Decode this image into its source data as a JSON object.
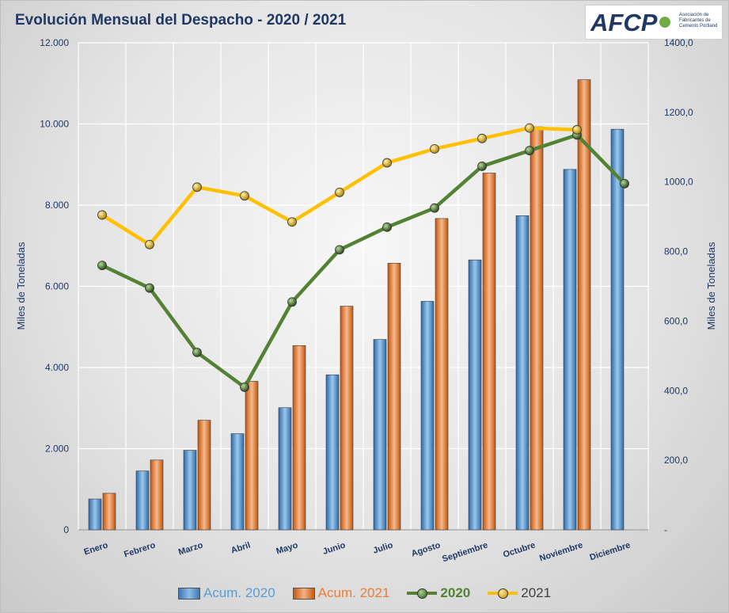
{
  "title": "Evolución Mensual del Despacho - 2020 / 2021",
  "logo": {
    "text": "AFCP",
    "subtitle": "Asociación de Fabricantes de Cemento Portland"
  },
  "colors": {
    "acum2020": "#5b9bd5",
    "acum2021": "#ed7d31",
    "line2020": "#548235",
    "line2021": "#ffc000",
    "text": "#1f3864"
  },
  "chart_data": {
    "type": "bar",
    "title": "Evolución Mensual del Despacho - 2020 / 2021",
    "categories": [
      "Enero",
      "Febrero",
      "Marzo",
      "Abril",
      "Mayo",
      "Junio",
      "Julio",
      "Agosto",
      "Septiembre",
      "Octubre",
      "Noviembre",
      "Diciembre"
    ],
    "ylabel_left": "Miles de Toneladas",
    "ylabel_right": "Miles de Toneladas",
    "ylim_left": [
      0,
      12000
    ],
    "ylim_right": [
      0,
      1400
    ],
    "yticks_left": [
      "0",
      "2.000",
      "4.000",
      "6.000",
      "8.000",
      "10.000",
      "12.000"
    ],
    "yticks_right": [
      "-",
      "200,0",
      "400,0",
      "600,0",
      "800,0",
      "1000,0",
      "1200,0",
      "1400,0"
    ],
    "grid": true,
    "legend_position": "bottom",
    "series": [
      {
        "name": "Acum. 2020",
        "type": "bar",
        "axis": "left",
        "values": [
          760,
          1450,
          1960,
          2370,
          3010,
          3820,
          4690,
          5630,
          6650,
          7740,
          8880,
          9870
        ]
      },
      {
        "name": "Acum. 2021",
        "type": "bar",
        "axis": "left",
        "values": [
          900,
          1720,
          2700,
          3660,
          4540,
          5510,
          6570,
          7670,
          8790,
          9930,
          11090,
          null
        ]
      },
      {
        "name": "2020",
        "type": "line",
        "axis": "right",
        "values": [
          760,
          695,
          510,
          410,
          655,
          805,
          870,
          925,
          1045,
          1090,
          1135,
          995
        ]
      },
      {
        "name": "2021",
        "type": "line",
        "axis": "right",
        "values": [
          905,
          820,
          985,
          960,
          885,
          970,
          1055,
          1095,
          1125,
          1155,
          1150,
          null
        ]
      }
    ]
  }
}
